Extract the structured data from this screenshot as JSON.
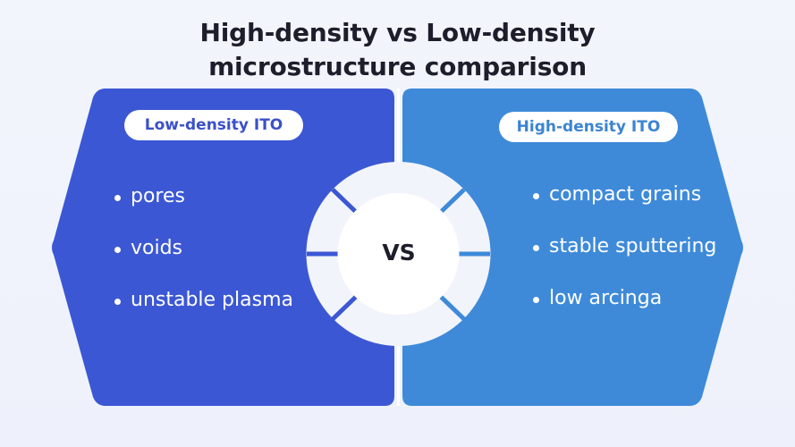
{
  "title": {
    "line1": "High-density vs Low-density",
    "line2": "microstructure comparison"
  },
  "left_panel": {
    "label": "Low-density ITO",
    "color": "#3b57d4",
    "items": [
      "pores",
      "voids",
      "unstable plasma"
    ]
  },
  "right_panel": {
    "label": "High-density ITO",
    "color": "#3e8ad9",
    "items": [
      "compact grains",
      "stable sputtering",
      "low arcinga"
    ]
  },
  "center": {
    "label": "VS"
  }
}
